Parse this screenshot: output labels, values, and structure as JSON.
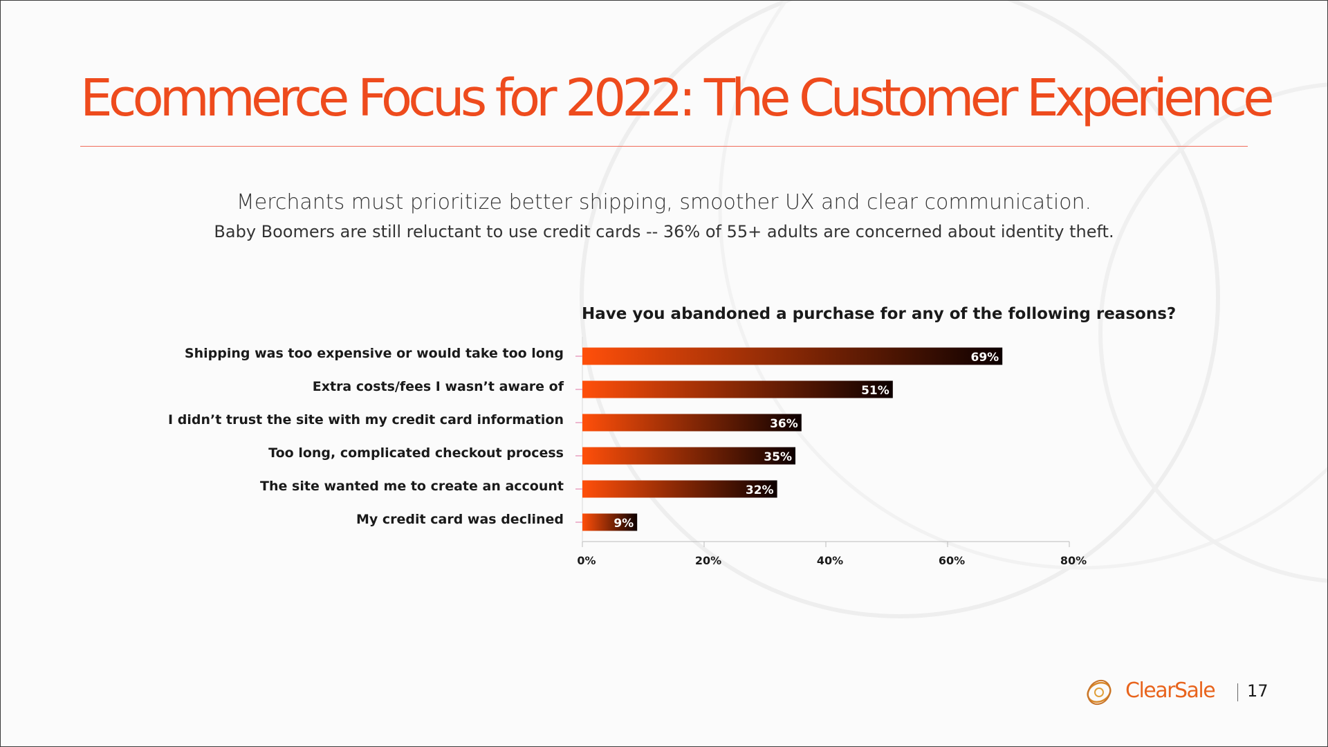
{
  "slide": {
    "title": "Ecommerce Focus for 2022: The Customer Experience",
    "subtitle": "Merchants must prioritize better shipping, smoother UX and clear communication.",
    "subtitle2": "Baby Boomers are still reluctant to use credit cards -- 36% of 55+ adults are concerned about identity theft.",
    "brand": "ClearSale",
    "page_number": "17",
    "accent_color": "#ee4b1d"
  },
  "chart_data": {
    "type": "bar",
    "orientation": "horizontal",
    "title": "Have you abandoned a purchase for any of the following reasons?",
    "categories": [
      "Shipping was too expensive or would take too long",
      "Extra costs/fees I wasn’t aware of",
      "I didn’t trust the site with my credit card information",
      "Too long, complicated checkout process",
      "The site wanted me to create an account",
      "My credit card was declined"
    ],
    "values": [
      69,
      51,
      36,
      35,
      32,
      9
    ],
    "value_labels": [
      "69%",
      "51%",
      "36%",
      "35%",
      "32%",
      "9%"
    ],
    "xlim": [
      0,
      80
    ],
    "xticks": [
      0,
      20,
      40,
      60,
      80
    ],
    "xtick_labels": [
      "0%",
      "20%",
      "40%",
      "60%",
      "80%"
    ],
    "grid": false,
    "bar_gradient": [
      "#ff4f0a",
      "#0d0000"
    ]
  }
}
